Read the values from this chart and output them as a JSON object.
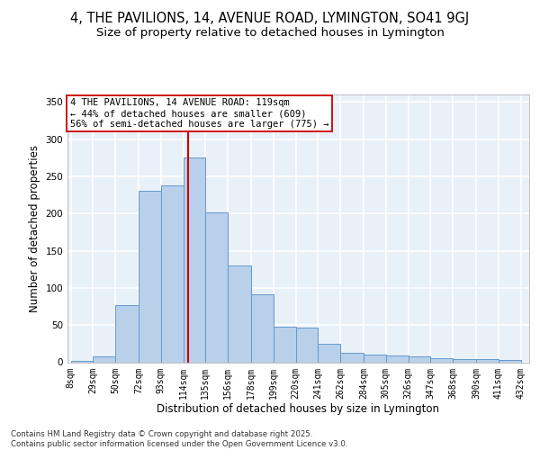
{
  "title_line1": "4, THE PAVILIONS, 14, AVENUE ROAD, LYMINGTON, SO41 9GJ",
  "title_line2": "Size of property relative to detached houses in Lymington",
  "xlabel": "Distribution of detached houses by size in Lymington",
  "ylabel": "Number of detached properties",
  "hist_values": [
    2,
    8,
    77,
    230,
    238,
    275,
    202,
    130,
    91,
    48,
    46,
    25,
    13,
    10,
    9,
    8,
    5,
    4,
    4,
    3
  ],
  "bin_edges": [
    8,
    29,
    50,
    72,
    93,
    114,
    135,
    156,
    178,
    199,
    220,
    241,
    262,
    284,
    305,
    326,
    347,
    368,
    390,
    411,
    432
  ],
  "bar_color": "#b8d0ea",
  "bar_edge_color": "#6699cc",
  "vline_x": 119,
  "vline_color": "#cc0000",
  "annotation_text": "4 THE PAVILIONS, 14 AVENUE ROAD: 119sqm\n← 44% of detached houses are smaller (609)\n56% of semi-detached houses are larger (775) →",
  "annotation_box_color": "#ffffff",
  "annotation_box_edge": "#cc0000",
  "ylim": [
    0,
    360
  ],
  "yticks": [
    0,
    50,
    100,
    150,
    200,
    250,
    300,
    350
  ],
  "background_color": "#e8f0f8",
  "grid_color": "#ffffff",
  "footer_text": "Contains HM Land Registry data © Crown copyright and database right 2025.\nContains public sector information licensed under the Open Government Licence v3.0.",
  "title_fontsize": 10.5,
  "subtitle_fontsize": 9.5,
  "axis_label_fontsize": 8.5,
  "tick_fontsize": 7,
  "annotation_fontsize": 7.5
}
